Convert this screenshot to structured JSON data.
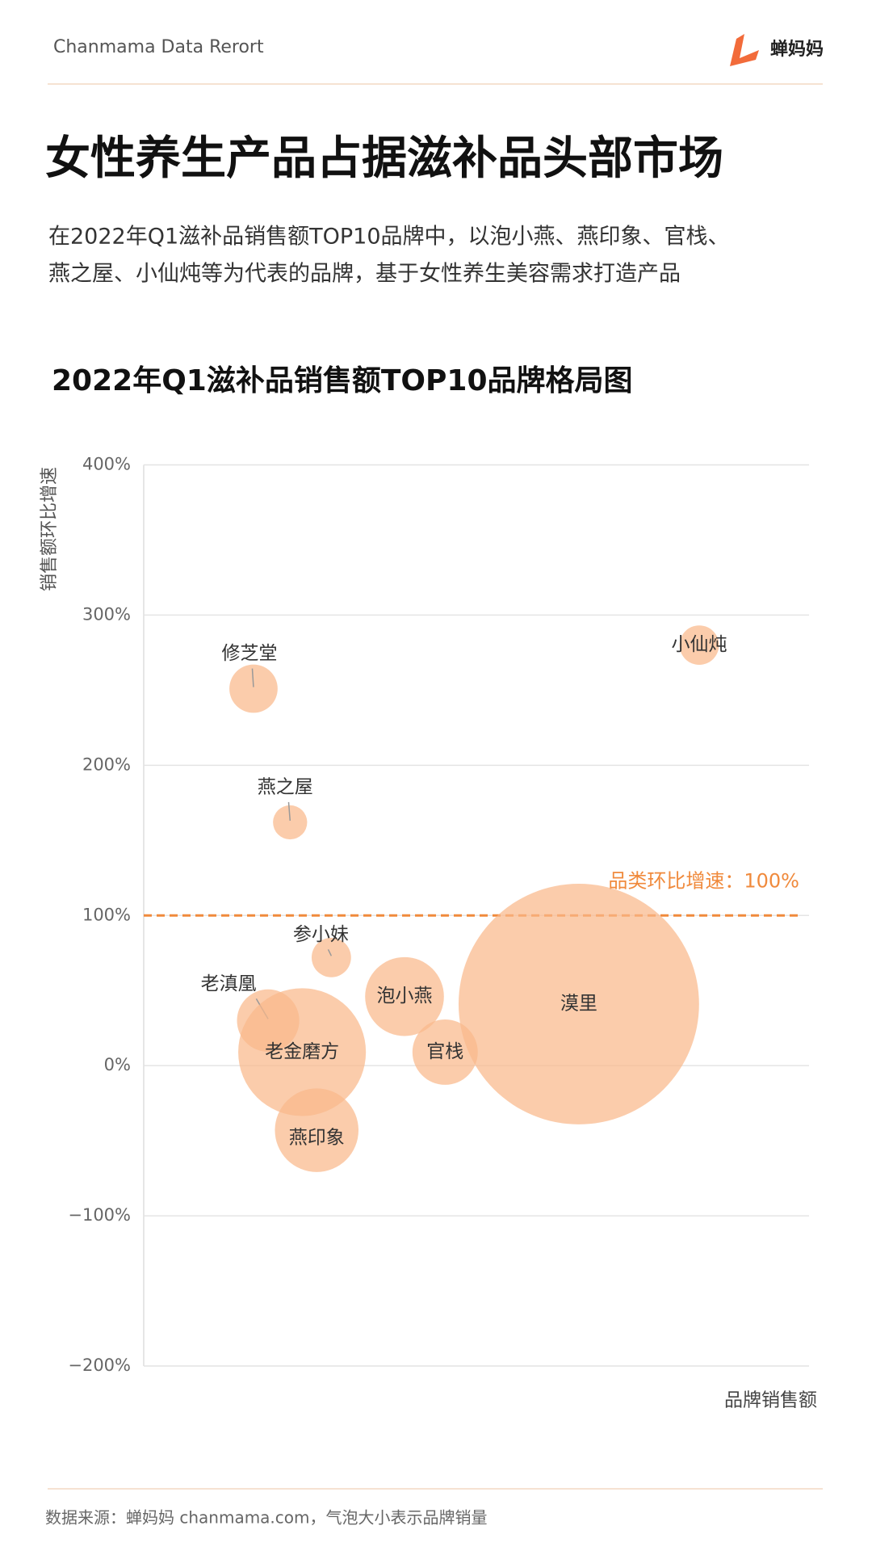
{
  "header": {
    "brand_text": "Chanmama Data Rerort",
    "logo_text": "蝉妈妈"
  },
  "title": "女性养生产品占据滋补品头部市场",
  "subtitle_lines": [
    "在2022年Q1滋补品销售额TOP10品牌中，以泡小燕、燕印象、官栈、",
    "燕之屋、小仙炖等为代表的品牌，基于女性养生美容需求打造产品"
  ],
  "chart_data": {
    "type": "bubble",
    "title": "2022年Q1滋补品销售额TOP10品牌格局图",
    "y_label": "销售额环比增速",
    "x_label": "品牌销售额",
    "names": [
      "修芝堂",
      "燕之屋",
      "小仙炖",
      "参小妹",
      "老滇凰",
      "老金磨方",
      "燕印象",
      "泡小燕",
      "官栈",
      "漠里"
    ],
    "x": [
      16.5,
      22,
      83.5,
      28.2,
      18.7,
      23.8,
      26,
      39.2,
      45.3,
      65.4
    ],
    "values": [
      251,
      162,
      280,
      72,
      30,
      9,
      -43,
      46,
      9,
      41
    ],
    "sizes": [
      6,
      3,
      4,
      4,
      10,
      42,
      18,
      16,
      11,
      149
    ],
    "color": "#f9b98a",
    "xlim": [
      0,
      100
    ],
    "ylim": [
      -200,
      400
    ],
    "yticks": [
      {
        "value": 400,
        "label": "400%"
      },
      {
        "value": 300,
        "label": "300%"
      },
      {
        "value": 200,
        "label": "200%"
      },
      {
        "value": 100,
        "label": "100%"
      },
      {
        "value": 0,
        "label": "0%"
      },
      {
        "value": -100,
        "label": "−100%"
      },
      {
        "value": -200,
        "label": "−200%"
      }
    ],
    "grid": true,
    "reference_line": {
      "value": 100,
      "label": "品类环比增速：100%",
      "color": "#f08a3c"
    }
  },
  "footer": "数据来源：蝉妈妈 chanmama.com，气泡大小表示品牌销量"
}
